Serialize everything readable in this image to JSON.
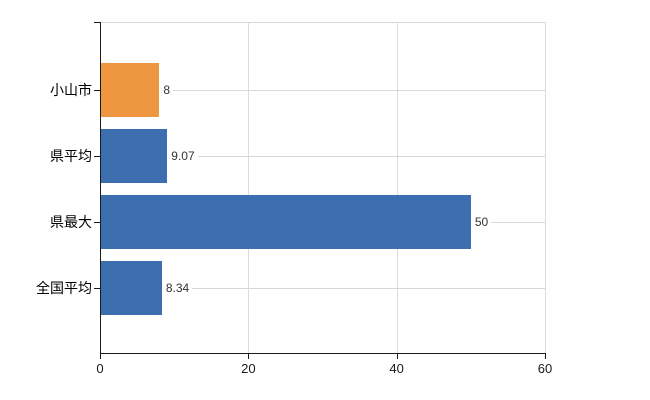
{
  "chart_data": {
    "type": "bar",
    "orientation": "horizontal",
    "title": "",
    "xlabel": "",
    "ylabel": "",
    "categories": [
      "小山市",
      "県平均",
      "県最大",
      "全国平均"
    ],
    "values": [
      8,
      9.07,
      50,
      8.34
    ],
    "value_labels": [
      "8",
      "9.07",
      "50",
      "8.34"
    ],
    "bar_colors": [
      "#EF9640",
      "#3D6EAF",
      "#3D6EAF",
      "#3D6EAF"
    ],
    "xlim": [
      0,
      60
    ],
    "x_ticks": [
      0,
      20,
      40,
      60
    ],
    "x_tick_labels": [
      "0",
      "20",
      "40",
      "60"
    ],
    "grid": true,
    "legend": null
  },
  "colors": {
    "orange": "#EF9640",
    "blue": "#3D6EAF",
    "gridline": "#DCDCDC",
    "plot_border": "#D9D9D9",
    "leader_line": "#D6DBD2",
    "axis": "#1A1A1A",
    "tick": "#1A1A1A",
    "value_text": "#333333",
    "category_text": "#000000",
    "tick_text": "#1A1A1A",
    "background": "#FFFFFF"
  }
}
